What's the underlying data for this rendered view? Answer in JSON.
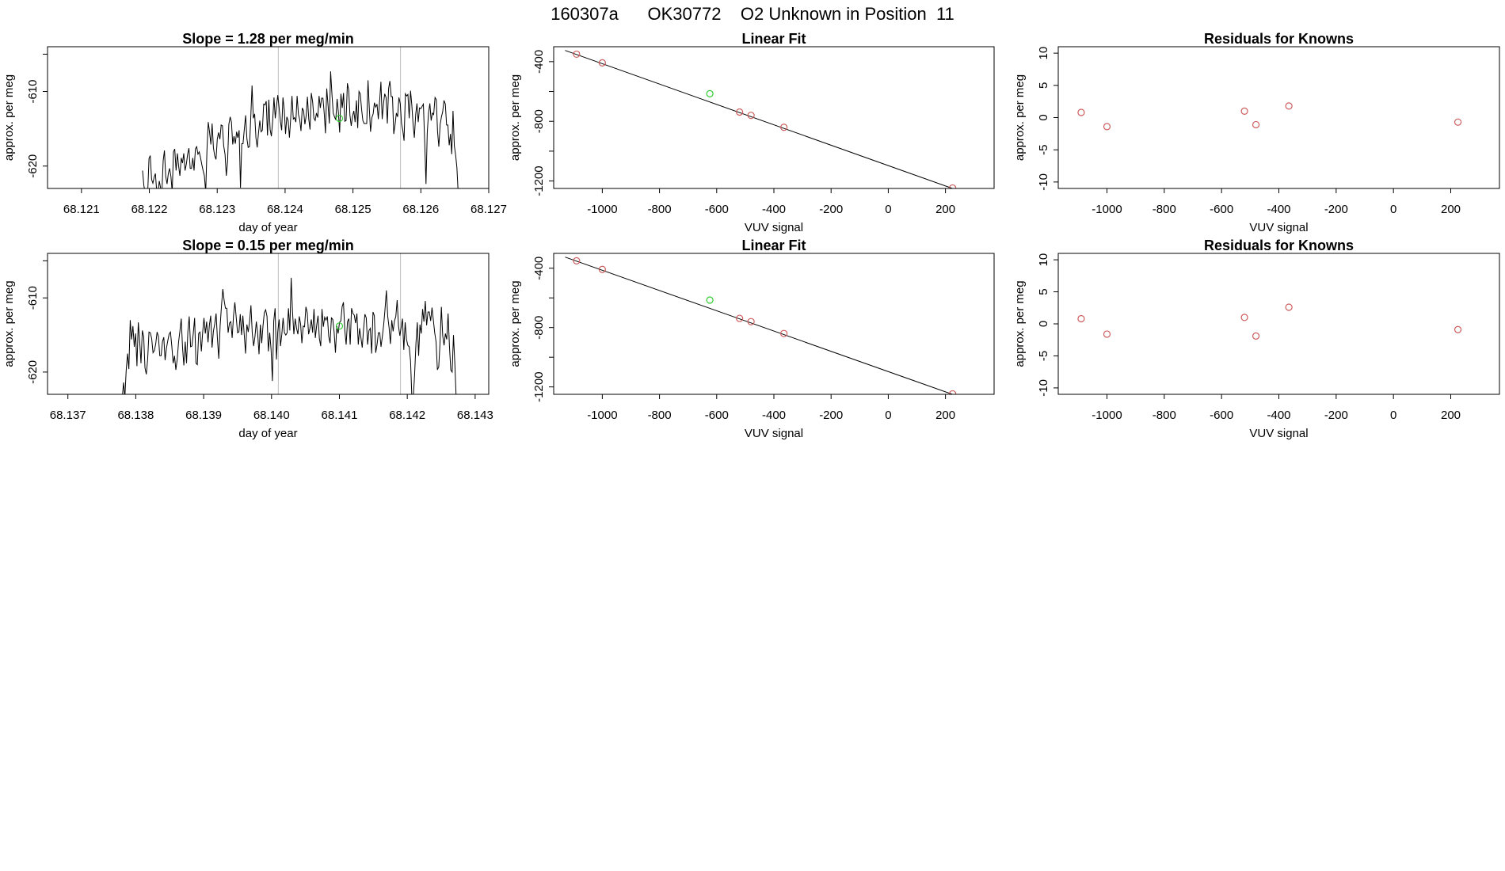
{
  "title": "160307a      OK30772    O2 Unknown in Position  11",
  "colors": {
    "known": "#cd5c5c",
    "unknown": "#32cd32",
    "line": "#000000",
    "guide": "#bdbdbd"
  },
  "chart_data": [
    {
      "id": "trace1",
      "type": "line",
      "title": "Slope =  1.28  per meg/min",
      "xlabel": "day of year",
      "ylabel": "approx. per meg",
      "xlim": [
        68.1205,
        68.127
      ],
      "ylim": [
        -623.0,
        -604.0
      ],
      "xticks": [
        {
          "v": 68.121,
          "label": "68.121"
        },
        {
          "v": 68.122,
          "label": "68.122"
        },
        {
          "v": 68.123,
          "label": "68.123"
        },
        {
          "v": 68.124,
          "label": "68.124"
        },
        {
          "v": 68.125,
          "label": "68.125"
        },
        {
          "v": 68.126,
          "label": "68.126"
        },
        {
          "v": 68.127,
          "label": "68.127"
        }
      ],
      "yticks": [
        {
          "v": -620,
          "label": "-620"
        },
        {
          "v": -610,
          "label": "-610"
        }
      ],
      "yticks_minor": [
        -605
      ],
      "vlines": [
        68.1239,
        68.1257
      ],
      "series": [
        {
          "x_start": 68.1219,
          "x_end": 68.12655,
          "y": [
            -620.6,
            -622.6,
            -623.5,
            -623.5,
            -623.5,
            -619.0,
            -618.6,
            -621.8,
            -622.3,
            -621.5,
            -621.0,
            -623.5,
            -623.5,
            -622.0,
            -622.9,
            -623.5,
            -619.3,
            -617.9,
            -621.4,
            -622.4,
            -621.0,
            -620.3,
            -621.4,
            -623.5,
            -618.1,
            -617.7,
            -620.6,
            -618.3,
            -620.0,
            -621.3,
            -618.9,
            -619.6,
            -618.3,
            -620.6,
            -619.7,
            -618.4,
            -617.6,
            -620.3,
            -620.3,
            -618.9,
            -620.6,
            -617.7,
            -617.4,
            -618.4,
            -618.1,
            -618.9,
            -619.8,
            -620.6,
            -621.3,
            -623.5,
            -617.8,
            -614.1,
            -615.4,
            -617.1,
            -614.3,
            -617.5,
            -618.6,
            -619.1,
            -616.4,
            -615.5,
            -616.4,
            -614.5,
            -614.6,
            -617.3,
            -618.4,
            -621.3,
            -619.4,
            -614.4,
            -613.4,
            -614.1,
            -617.1,
            -616.0,
            -617.0,
            -615.4,
            -616.2,
            -615.2,
            -622.9,
            -617.0,
            -617.0,
            -615.0,
            -613.2,
            -616.3,
            -617.5,
            -617.4,
            -613.4,
            -609.2,
            -613.6,
            -613.0,
            -616.2,
            -617.5,
            -615.6,
            -613.9,
            -615.4,
            -615.2,
            -611.7,
            -611.8,
            -611.3,
            -615.9,
            -611.1,
            -615.1,
            -616.0,
            -614.0,
            -610.8,
            -613.6,
            -611.9,
            -610.5,
            -612.2,
            -614.0,
            -615.2,
            -610.8,
            -612.5,
            -615.7,
            -613.4,
            -613.9,
            -616.2,
            -613.6,
            -610.6,
            -613.7,
            -613.5,
            -614.1,
            -610.6,
            -613.1,
            -613.8,
            -615.3,
            -612.2,
            -612.6,
            -614.4,
            -613.3,
            -610.7,
            -613.7,
            -615.1,
            -610.2,
            -611.4,
            -613.6,
            -613.9,
            -612.9,
            -613.5,
            -610.6,
            -612.2,
            -610.9,
            -610.9,
            -612.9,
            -615.6,
            -609.6,
            -611.9,
            -614.3,
            -607.3,
            -610.4,
            -612.9,
            -613.4,
            -613.8,
            -611.0,
            -612.8,
            -615.5,
            -610.3,
            -612.2,
            -610.2,
            -614.0,
            -613.9,
            -608.9,
            -609.8,
            -613.2,
            -614.6,
            -613.3,
            -612.6,
            -614.1,
            -611.2,
            -614.9,
            -610.0,
            -610.3,
            -612.4,
            -613.9,
            -614.3,
            -614.3,
            -614.3,
            -608.5,
            -612.2,
            -615.4,
            -613.5,
            -613.0,
            -611.5,
            -612.1,
            -611.7,
            -613.7,
            -611.4,
            -608.7,
            -613.7,
            -611.7,
            -610.3,
            -610.8,
            -614.3,
            -609.6,
            -608.6,
            -610.7,
            -610.7,
            -615.7,
            -614.5,
            -612.9,
            -613.4,
            -610.8,
            -611.6,
            -614.3,
            -615.2,
            -616.6,
            -610.3,
            -610.6,
            -610.4,
            -613.6,
            -609.9,
            -611.8,
            -614.4,
            -616.2,
            -613.1,
            -611.6,
            -614.1,
            -612.2,
            -612.3,
            -612.0,
            -611.7,
            -616.9,
            -622.4,
            -615.5,
            -612.9,
            -611.6,
            -613.9,
            -612.9,
            -613.1,
            -610.8,
            -611.1,
            -615.4,
            -617.4,
            -614.4,
            -613.4,
            -612.7,
            -611.2,
            -611.7,
            -614.5,
            -614.5,
            -617.2,
            -615.7,
            -618.4,
            -612.6,
            -617.3,
            -618.5,
            -620.2,
            -623.5
          ]
        }
      ],
      "marker": {
        "x": 68.1248,
        "y": -613.6
      }
    },
    {
      "id": "fit1",
      "type": "scatter",
      "title": "Linear Fit",
      "xlabel": "VUV signal",
      "ylabel": "approx. per meg",
      "xlim": [
        -1170,
        370
      ],
      "ylim": [
        -1250,
        -300
      ],
      "xticks": [
        {
          "v": -1000,
          "label": "-1000"
        },
        {
          "v": -800,
          "label": "-800"
        },
        {
          "v": -600,
          "label": "-600"
        },
        {
          "v": -400,
          "label": "-400"
        },
        {
          "v": -200,
          "label": "-200"
        },
        {
          "v": 0,
          "label": "0"
        },
        {
          "v": 200,
          "label": "200"
        }
      ],
      "yticks": [
        {
          "v": -1200,
          "label": "-1200"
        },
        {
          "v": -800,
          "label": "-800"
        },
        {
          "v": -400,
          "label": "-400"
        }
      ],
      "yticks_minor": [
        -1000,
        -600
      ],
      "known_x": [
        -1090,
        -1000,
        -520,
        -480,
        -365,
        225
      ],
      "known_y": [
        -350,
        -408,
        -738,
        -760,
        -840,
        -1247
      ],
      "unknown": {
        "x": -624,
        "y": -615
      },
      "fit": {
        "x": [
          -1130,
          305
        ],
        "y": [
          -325,
          -1305
        ]
      }
    },
    {
      "id": "resid1",
      "type": "scatter",
      "title": "Residuals for Knowns",
      "xlabel": "VUV signal",
      "ylabel": "approx. per meg",
      "xlim": [
        -1170,
        370
      ],
      "ylim": [
        -11,
        11
      ],
      "xticks": [
        {
          "v": -1000,
          "label": "-1000"
        },
        {
          "v": -800,
          "label": "-800"
        },
        {
          "v": -600,
          "label": "-600"
        },
        {
          "v": -400,
          "label": "-400"
        },
        {
          "v": -200,
          "label": "-200"
        },
        {
          "v": 0,
          "label": "0"
        },
        {
          "v": 200,
          "label": "200"
        }
      ],
      "yticks": [
        {
          "v": -10,
          "label": "-10"
        },
        {
          "v": -5,
          "label": "-5"
        },
        {
          "v": 0,
          "label": "0"
        },
        {
          "v": 5,
          "label": "5"
        },
        {
          "v": 10,
          "label": "10"
        }
      ],
      "yticks_minor": [],
      "known_x": [
        -1090,
        -1000,
        -520,
        -480,
        -365,
        225
      ],
      "known_y": [
        0.8,
        -1.4,
        1.0,
        -1.1,
        1.8,
        -0.7
      ]
    },
    {
      "id": "trace2",
      "type": "line",
      "title": "Slope =  0.15  per meg/min",
      "xlabel": "day of year",
      "ylabel": "approx. per meg",
      "xlim": [
        68.1367,
        68.1432
      ],
      "ylim": [
        -623.0,
        -604.0
      ],
      "xticks": [
        {
          "v": 68.137,
          "label": "68.137"
        },
        {
          "v": 68.138,
          "label": "68.138"
        },
        {
          "v": 68.139,
          "label": "68.139"
        },
        {
          "v": 68.14,
          "label": "68.140"
        },
        {
          "v": 68.141,
          "label": "68.141"
        },
        {
          "v": 68.142,
          "label": "68.142"
        },
        {
          "v": 68.143,
          "label": "68.143"
        }
      ],
      "yticks": [
        {
          "v": -620,
          "label": "-620"
        },
        {
          "v": -610,
          "label": "-610"
        }
      ],
      "yticks_minor": [
        -605
      ],
      "vlines": [
        68.1401,
        68.1419
      ],
      "series": [
        {
          "x_start": 68.1378,
          "x_end": 68.14272,
          "y": [
            -623.5,
            -621.4,
            -623.5,
            -619.8,
            -617.5,
            -619.6,
            -613.0,
            -615.6,
            -613.8,
            -616.6,
            -614.8,
            -619.2,
            -613.3,
            -615.8,
            -618.8,
            -614.4,
            -615.2,
            -619.4,
            -620.3,
            -618.3,
            -614.6,
            -614.7,
            -615.5,
            -617.4,
            -617.1,
            -616.2,
            -614.6,
            -615.2,
            -617.8,
            -617.8,
            -615.9,
            -615.3,
            -618.4,
            -616.8,
            -615.8,
            -614.9,
            -614.6,
            -616.5,
            -618.8,
            -617.8,
            -619.7,
            -618.3,
            -616.0,
            -614.5,
            -612.8,
            -616.8,
            -619.1,
            -615.9,
            -618.8,
            -614.5,
            -612.5,
            -616.6,
            -616.5,
            -614.8,
            -612.7,
            -618.8,
            -619.0,
            -614.8,
            -614.6,
            -617.2,
            -614.6,
            -612.7,
            -614.8,
            -613.2,
            -616.0,
            -613.7,
            -612.4,
            -616.7,
            -614.5,
            -613.5,
            -612.1,
            -615.5,
            -618.2,
            -613.8,
            -611.1,
            -608.8,
            -610.3,
            -611.4,
            -611.4,
            -614.7,
            -613.4,
            -613.2,
            -615.4,
            -612.4,
            -610.6,
            -612.6,
            -614.7,
            -614.6,
            -612.2,
            -615.0,
            -612.4,
            -614.9,
            -617.5,
            -613.6,
            -614.6,
            -613.2,
            -611.0,
            -614.8,
            -616.5,
            -615.2,
            -613.2,
            -614.8,
            -617.6,
            -613.6,
            -616.1,
            -613.8,
            -612.0,
            -611.6,
            -612.5,
            -617.2,
            -614.7,
            -616.9,
            -621.2,
            -613.1,
            -611.4,
            -618.3,
            -614.5,
            -612.9,
            -616.5,
            -614.9,
            -612.7,
            -614.7,
            -615.0,
            -614.7,
            -611.4,
            -614.4,
            -607.3,
            -611.9,
            -614.9,
            -612.8,
            -614.1,
            -614.9,
            -612.5,
            -613.5,
            -616.1,
            -613.8,
            -613.9,
            -611.2,
            -612.0,
            -614.9,
            -614.1,
            -612.9,
            -614.7,
            -611.5,
            -615.4,
            -613.7,
            -612.4,
            -615.5,
            -616.5,
            -611.5,
            -613.9,
            -612.6,
            -613.0,
            -612.5,
            -615.2,
            -616.1,
            -612.7,
            -612.9,
            -614.6,
            -617.4,
            -613.8,
            -614.8,
            -613.3,
            -613.1,
            -611.2,
            -610.6,
            -614.4,
            -616.3,
            -613.2,
            -612.8,
            -616.3,
            -611.4,
            -612.1,
            -612.3,
            -613.4,
            -612.1,
            -616.3,
            -614.1,
            -615.4,
            -616.7,
            -614.2,
            -612.2,
            -612.7,
            -616.3,
            -614.4,
            -614.1,
            -617.5,
            -611.9,
            -612.4,
            -617.4,
            -616.3,
            -614.7,
            -614.7,
            -616.6,
            -615.2,
            -613.6,
            -611.5,
            -609.0,
            -612.5,
            -614.0,
            -616.2,
            -613.0,
            -614.5,
            -613.1,
            -612.5,
            -610.3,
            -613.8,
            -615.1,
            -614.0,
            -612.8,
            -617.0,
            -613.3,
            -615.6,
            -616.4,
            -616.6,
            -618.5,
            -623.5,
            -623.5,
            -620.4,
            -616.2,
            -613.3,
            -617.8,
            -613.6,
            -614.8,
            -611.5,
            -613.2,
            -610.4,
            -613.7,
            -611.9,
            -611.9,
            -613.1,
            -611.3,
            -613.0,
            -614.7,
            -615.9,
            -619.7,
            -619.3,
            -616.1,
            -611.2,
            -615.1,
            -616.4,
            -614.8,
            -615.6,
            -612.1,
            -616.5,
            -619.7,
            -620.0,
            -615.0,
            -618.8,
            -623.5
          ]
        }
      ],
      "marker": {
        "x": 68.141,
        "y": -613.8
      }
    },
    {
      "id": "fit2",
      "type": "scatter",
      "title": "Linear Fit",
      "xlabel": "VUV signal",
      "ylabel": "approx. per meg",
      "xlim": [
        -1170,
        370
      ],
      "ylim": [
        -1250,
        -300
      ],
      "xticks": [
        {
          "v": -1000,
          "label": "-1000"
        },
        {
          "v": -800,
          "label": "-800"
        },
        {
          "v": -600,
          "label": "-600"
        },
        {
          "v": -400,
          "label": "-400"
        },
        {
          "v": -200,
          "label": "-200"
        },
        {
          "v": 0,
          "label": "0"
        },
        {
          "v": 200,
          "label": "200"
        }
      ],
      "yticks": [
        {
          "v": -1200,
          "label": "-1200"
        },
        {
          "v": -800,
          "label": "-800"
        },
        {
          "v": -400,
          "label": "-400"
        }
      ],
      "yticks_minor": [
        -1000,
        -600
      ],
      "known_x": [
        -1090,
        -1000,
        -520,
        -480,
        -365,
        225
      ],
      "known_y": [
        -350,
        -408,
        -738,
        -760,
        -840,
        -1247
      ],
      "unknown": {
        "x": -624,
        "y": -615
      },
      "fit": {
        "x": [
          -1130,
          305
        ],
        "y": [
          -325,
          -1305
        ]
      }
    },
    {
      "id": "resid2",
      "type": "scatter",
      "title": "Residuals for Knowns",
      "xlabel": "VUV signal",
      "ylabel": "approx. per meg",
      "xlim": [
        -1170,
        370
      ],
      "ylim": [
        -11,
        11
      ],
      "xticks": [
        {
          "v": -1000,
          "label": "-1000"
        },
        {
          "v": -800,
          "label": "-800"
        },
        {
          "v": -600,
          "label": "-600"
        },
        {
          "v": -400,
          "label": "-400"
        },
        {
          "v": -200,
          "label": "-200"
        },
        {
          "v": 0,
          "label": "0"
        },
        {
          "v": 200,
          "label": "200"
        }
      ],
      "yticks": [
        {
          "v": -10,
          "label": "-10"
        },
        {
          "v": -5,
          "label": "-5"
        },
        {
          "v": 0,
          "label": "0"
        },
        {
          "v": 5,
          "label": "5"
        },
        {
          "v": 10,
          "label": "10"
        }
      ],
      "yticks_minor": [],
      "known_x": [
        -1090,
        -1000,
        -520,
        -480,
        -365,
        225
      ],
      "known_y": [
        0.8,
        -1.6,
        1.0,
        -1.9,
        2.6,
        -0.9
      ]
    }
  ]
}
